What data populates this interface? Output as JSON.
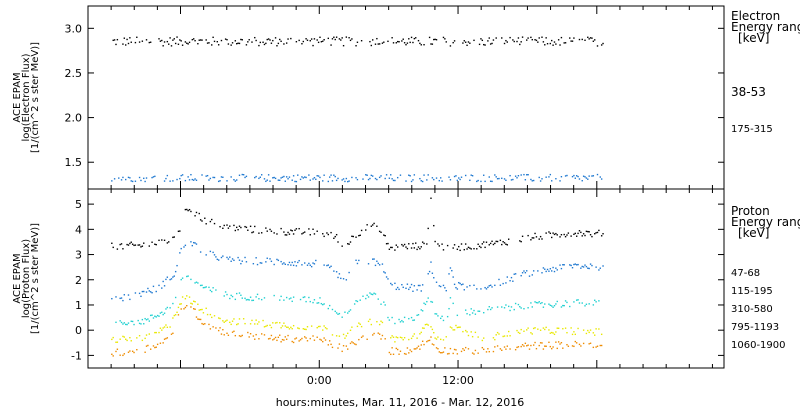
{
  "chart_data": [
    {
      "type": "scatter",
      "ylabel": [
        "ACE EPAM",
        "log(Electron Flux)",
        "[1/(cm^2 s ster MeV)]"
      ],
      "ylim": [
        1.2,
        3.25
      ],
      "yticks": [
        "1.5",
        "2.0",
        "2.5",
        "3.0"
      ],
      "legend_title": [
        "Electron",
        "Energy range",
        "[keV]"
      ],
      "series": [
        {
          "name": "38-53",
          "color": "#000000",
          "level": 2.86,
          "jitter": 0.05
        },
        {
          "name": "175-315",
          "color": "#1e78d0",
          "level": 1.33,
          "jitter": 0.04
        }
      ]
    },
    {
      "type": "scatter",
      "ylabel": [
        "ACE EPAM",
        "log(Proton Flux)",
        "[1/(cm^2 s ster MeV)]"
      ],
      "ylim": [
        -1.5,
        5.6
      ],
      "yticks": [
        "-1",
        "0",
        "1",
        "2",
        "3",
        "4",
        "5"
      ],
      "legend_title": [
        "Proton",
        "Energy range",
        "[keV]"
      ],
      "series": [
        {
          "name": "47-68",
          "color": "#000000",
          "points": [
            [
              -18,
              3.35
            ],
            [
              -15,
              3.4
            ],
            [
              -13,
              3.6
            ],
            [
              -12,
              4.1
            ],
            [
              -11.5,
              4.9
            ],
            [
              -10,
              4.4
            ],
            [
              -8,
              4.1
            ],
            [
              -4,
              3.95
            ],
            [
              0,
              3.9
            ],
            [
              1.5,
              3.7
            ],
            [
              2,
              3.3
            ],
            [
              2.5,
              3.5
            ],
            [
              3,
              3.8
            ],
            [
              4.5,
              4.2
            ],
            [
              5.5,
              3.8
            ],
            [
              6,
              3.3
            ],
            [
              8,
              3.35
            ],
            [
              9.2,
              3.4
            ],
            [
              9.6,
              5.2
            ],
            [
              10,
              3.4
            ],
            [
              11,
              3.3
            ],
            [
              11.2,
              4.2
            ],
            [
              11.5,
              3.3
            ],
            [
              15,
              3.45
            ],
            [
              18,
              3.7
            ],
            [
              22,
              3.9
            ],
            [
              24,
              3.85
            ]
          ]
        },
        {
          "name": "115-195",
          "color": "#1e78d0",
          "points": [
            [
              -18,
              1.25
            ],
            [
              -16,
              1.4
            ],
            [
              -14,
              1.7
            ],
            [
              -12.5,
              2.3
            ],
            [
              -12,
              3.3
            ],
            [
              -11.3,
              3.6
            ],
            [
              -10,
              3.1
            ],
            [
              -8,
              2.8
            ],
            [
              -4,
              2.75
            ],
            [
              0,
              2.65
            ],
            [
              1.5,
              2.3
            ],
            [
              2,
              1.9
            ],
            [
              2.7,
              2.5
            ],
            [
              3.2,
              2.7
            ],
            [
              4.5,
              2.8
            ],
            [
              5.5,
              2.5
            ],
            [
              6,
              1.8
            ],
            [
              8,
              1.7
            ],
            [
              9,
              1.7
            ],
            [
              9.6,
              2.6
            ],
            [
              10,
              1.9
            ],
            [
              11,
              1.6
            ],
            [
              11.3,
              2.6
            ],
            [
              11.7,
              1.8
            ],
            [
              14,
              1.7
            ],
            [
              18,
              2.3
            ],
            [
              22,
              2.6
            ],
            [
              24,
              2.55
            ]
          ]
        },
        {
          "name": "310-580",
          "color": "#20d0d0",
          "points": [
            [
              -18,
              0.35
            ],
            [
              -15,
              0.4
            ],
            [
              -13,
              0.9
            ],
            [
              -12,
              1.9
            ],
            [
              -11.5,
              2.2
            ],
            [
              -10,
              1.7
            ],
            [
              -8,
              1.4
            ],
            [
              -4,
              1.3
            ],
            [
              0,
              1.2
            ],
            [
              1.5,
              0.8
            ],
            [
              2,
              0.5
            ],
            [
              2.7,
              1.0
            ],
            [
              3.2,
              1.2
            ],
            [
              4.5,
              1.5
            ],
            [
              5.5,
              1.1
            ],
            [
              6,
              0.4
            ],
            [
              8,
              0.45
            ],
            [
              9.6,
              1.3
            ],
            [
              10,
              0.6
            ],
            [
              11,
              0.5
            ],
            [
              11.3,
              1.3
            ],
            [
              11.7,
              0.7
            ],
            [
              14,
              0.8
            ],
            [
              18,
              1.0
            ],
            [
              22,
              1.1
            ],
            [
              24,
              1.1
            ]
          ]
        },
        {
          "name": "795-1193",
          "color": "#e8e800",
          "points": [
            [
              -18,
              -0.35
            ],
            [
              -15,
              -0.3
            ],
            [
              -13,
              0.2
            ],
            [
              -12,
              1.2
            ],
            [
              -11.5,
              1.3
            ],
            [
              -10,
              0.8
            ],
            [
              -8,
              0.4
            ],
            [
              -4,
              0.25
            ],
            [
              0,
              0.15
            ],
            [
              2,
              -0.2
            ],
            [
              3,
              0.1
            ],
            [
              4.5,
              0.4
            ],
            [
              5.5,
              0.2
            ],
            [
              6,
              -0.3
            ],
            [
              8,
              -0.3
            ],
            [
              9.6,
              0.3
            ],
            [
              10,
              -0.2
            ],
            [
              11,
              -0.3
            ],
            [
              11.3,
              0.2
            ],
            [
              14,
              -0.3
            ],
            [
              18,
              0.0
            ],
            [
              22,
              0.0
            ],
            [
              24,
              -0.05
            ]
          ]
        },
        {
          "name": "1060-1900",
          "color": "#ee8c00",
          "points": [
            [
              -18,
              -0.9
            ],
            [
              -15,
              -0.7
            ],
            [
              -13,
              -0.3
            ],
            [
              -12,
              0.8
            ],
            [
              -11.5,
              1.1
            ],
            [
              -10,
              0.3
            ],
            [
              -8,
              -0.1
            ],
            [
              -4,
              -0.3
            ],
            [
              0,
              -0.35
            ],
            [
              2,
              -0.7
            ],
            [
              3,
              -0.5
            ],
            [
              4.5,
              -0.1
            ],
            [
              5.5,
              -0.3
            ],
            [
              6,
              -0.8
            ],
            [
              8,
              -0.8
            ],
            [
              9.6,
              -0.3
            ],
            [
              10,
              -0.7
            ],
            [
              11,
              -0.8
            ],
            [
              14,
              -0.8
            ],
            [
              18,
              -0.6
            ],
            [
              22,
              -0.55
            ],
            [
              24,
              -0.6
            ]
          ]
        }
      ]
    }
  ],
  "x_axis": {
    "label": "hours:minutes, Mar. 11, 2016 - Mar. 12, 2016",
    "range_hours": [
      -20,
      35
    ],
    "data_end_hours": 24.5,
    "ticks": [
      {
        "hour": 0,
        "label": "0:00"
      },
      {
        "hour": 12,
        "label": "12:00"
      }
    ]
  }
}
